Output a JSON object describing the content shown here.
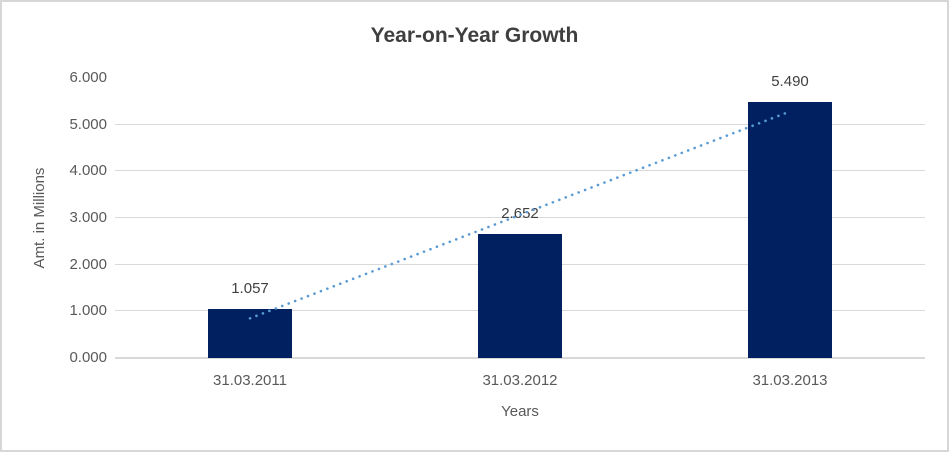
{
  "chart_data": {
    "type": "bar",
    "title": "Year-on-Year Growth",
    "xlabel": "Years",
    "ylabel": "Amt. in Millions",
    "categories": [
      "31.03.2011",
      "31.03.2012",
      "31.03.2013"
    ],
    "values": [
      1.057,
      2.652,
      5.49
    ],
    "value_labels": [
      "1.057",
      "2.652",
      "5.490"
    ],
    "ylim": [
      0,
      6
    ],
    "ytick_step": 1,
    "ytick_labels": [
      "0.000",
      "1.000",
      "2.000",
      "3.000",
      "4.000",
      "5.000",
      "6.000"
    ],
    "grid": true,
    "legend": "none",
    "trendline": {
      "kind": "linear",
      "style": "dotted",
      "color": "#5b9bd5"
    },
    "colors": {
      "bar": "#002060",
      "gridline": "#d9d9d9",
      "axis_line": "#d9d9d9",
      "title_text": "#3f3f3f",
      "tick_text": "#595959",
      "data_label_text": "#404040",
      "background": "#ffffff",
      "frame_border": "#d7d7d7"
    }
  }
}
